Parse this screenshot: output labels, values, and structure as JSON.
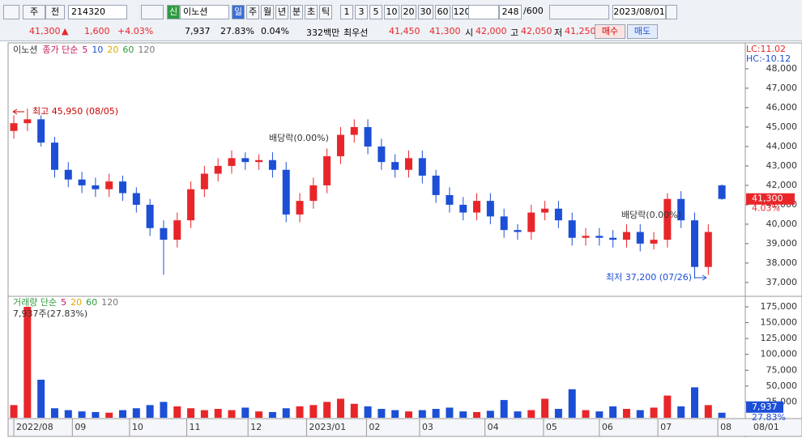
{
  "toolbar": {
    "period": "주",
    "mode": "전",
    "code": "214320",
    "badge": "신",
    "name": "이노션",
    "intervals": [
      "일",
      "주",
      "월",
      "년",
      "분",
      "초",
      "틱"
    ],
    "counts": [
      "1",
      "3",
      "5",
      "10",
      "20",
      "30",
      "60",
      "120"
    ],
    "count": "248",
    "max": "/600",
    "date": "2023/08/01"
  },
  "quote": {
    "price": "41,300",
    "arrow": "▲",
    "change": "1,600",
    "rate": "+4.03%",
    "volume": "7,937",
    "vol_rate": "27.83%",
    "turnover": "0.04%",
    "amount": "332백만",
    "best_label": "최우선",
    "ask": "41,450",
    "bid": "41,300",
    "open_label": "시",
    "open": "42,000",
    "high_label": "고",
    "high": "42,050",
    "low_label": "저",
    "low": "41,250",
    "buy": "매수",
    "sell": "매도"
  },
  "chart_data": {
    "type": "candlestick",
    "name": "이노션",
    "price_legend": "종가 단순",
    "price_periods": [
      "5",
      "10",
      "20",
      "60",
      "120"
    ],
    "lc": "LC:11.02",
    "hc": "HC:-10.12",
    "up_color": "#e8262a",
    "down_color": "#1c4fd6",
    "open": [
      44800,
      45200,
      45400,
      44200,
      42800,
      42300,
      42000,
      41800,
      42200,
      41600,
      41000,
      39800,
      39200,
      40200,
      41800,
      42600,
      43000,
      43400,
      43200,
      43300,
      42800,
      40500,
      41200,
      42000,
      43500,
      44600,
      45000,
      44000,
      43200,
      42800,
      43400,
      42500,
      41500,
      41000,
      40600,
      41200,
      40400,
      39700,
      39600,
      40600,
      40800,
      40200,
      39300,
      39400,
      39300,
      39200,
      39600,
      39000,
      39200,
      41300,
      40200,
      37800,
      42000
    ],
    "high": [
      45600,
      45950,
      45600,
      44500,
      43200,
      42700,
      42400,
      42600,
      42500,
      41900,
      41300,
      40200,
      40600,
      42200,
      43000,
      43400,
      43800,
      43700,
      43600,
      43700,
      43200,
      41600,
      42400,
      43900,
      45000,
      45400,
      45400,
      44400,
      43600,
      43800,
      43800,
      42800,
      41900,
      41400,
      41600,
      41600,
      40800,
      40000,
      41000,
      41200,
      41200,
      40600,
      39800,
      39800,
      39700,
      40000,
      40000,
      39600,
      41600,
      41700,
      40600,
      40000,
      42050
    ],
    "low": [
      44400,
      44800,
      44000,
      42400,
      41900,
      41600,
      41400,
      41400,
      41200,
      40600,
      39400,
      37400,
      38800,
      39800,
      41400,
      42200,
      42600,
      42800,
      42800,
      42400,
      40100,
      40100,
      40800,
      41600,
      43100,
      44200,
      43600,
      42800,
      42400,
      42400,
      42100,
      41100,
      40600,
      40200,
      40200,
      40000,
      39300,
      39200,
      39200,
      40200,
      39800,
      38900,
      38900,
      38900,
      38800,
      38800,
      38600,
      38700,
      38800,
      39800,
      37200,
      37400,
      41250
    ],
    "close": [
      45200,
      45400,
      44200,
      42800,
      42300,
      42000,
      41800,
      42200,
      41600,
      41000,
      39800,
      39200,
      40200,
      41800,
      42600,
      43000,
      43400,
      43200,
      43300,
      42800,
      40500,
      41200,
      42000,
      43500,
      44600,
      45000,
      44000,
      43200,
      42800,
      43400,
      42500,
      41500,
      41000,
      40600,
      41200,
      40400,
      39700,
      39600,
      40600,
      40800,
      40200,
      39300,
      39400,
      39300,
      39200,
      39600,
      39000,
      39200,
      41300,
      40200,
      37800,
      39600,
      41300
    ],
    "volume": [
      20000,
      175000,
      60000,
      15000,
      12000,
      10000,
      9000,
      8000,
      12000,
      15000,
      20000,
      25000,
      18000,
      15000,
      12000,
      14000,
      12000,
      16000,
      10000,
      9000,
      15000,
      18000,
      20000,
      25000,
      30000,
      22000,
      18000,
      14000,
      12000,
      10000,
      12000,
      14000,
      16000,
      10000,
      9000,
      11000,
      28000,
      10000,
      12000,
      30000,
      14000,
      45000,
      12000,
      10000,
      18000,
      14000,
      12000,
      16000,
      35000,
      18000,
      48000,
      20000,
      7937
    ],
    "xlim": [
      -0.3,
      53.6
    ],
    "xticks": [
      {
        "value": 0,
        "label": "2022/08"
      },
      {
        "value": 4.3,
        "label": "09"
      },
      {
        "value": 8.5,
        "label": "10"
      },
      {
        "value": 12.7,
        "label": "11"
      },
      {
        "value": 17.2,
        "label": "12"
      },
      {
        "value": 21.5,
        "label": "2023/01"
      },
      {
        "value": 25.9,
        "label": "02"
      },
      {
        "value": 29.8,
        "label": "03"
      },
      {
        "value": 34.6,
        "label": "04"
      },
      {
        "value": 38.9,
        "label": "05"
      },
      {
        "value": 43.0,
        "label": "06"
      },
      {
        "value": 47.3,
        "label": "07"
      },
      {
        "value": 51.7,
        "label": "08"
      }
    ],
    "last_date": "08/01",
    "ylim": [
      36330,
      49040
    ],
    "yticks": [
      {
        "value": 37000,
        "label": "37,000"
      },
      {
        "value": 38000,
        "label": "38,000"
      },
      {
        "value": 39000,
        "label": "39,000"
      },
      {
        "value": 40000,
        "label": "40,000"
      },
      {
        "value": 41000,
        "label": "41,000"
      },
      {
        "value": 42000,
        "label": "42,000"
      },
      {
        "value": 43000,
        "label": "43,000"
      },
      {
        "value": 44000,
        "label": "44,000"
      },
      {
        "value": 45000,
        "label": "45,000"
      },
      {
        "value": 46000,
        "label": "46,000"
      },
      {
        "value": 47000,
        "label": "47,000"
      },
      {
        "value": 48000,
        "label": "48,000"
      }
    ],
    "last_price": {
      "value": 41300,
      "label": "41,300"
    },
    "last_rate": "4.03%",
    "annotations": [
      "최고 45,950 (08/05)",
      "배당락(0.00%)",
      "배당락(0.00%)",
      "최저 37,200 (07/26)"
    ],
    "volume_legend": "거래량 단순",
    "volume_periods": [
      "5",
      "20",
      "60",
      "120"
    ],
    "volume_info": "7,937주(27.83%)",
    "volume_ylim": [
      0,
      189000
    ],
    "volume_yticks": [
      {
        "value": 25000,
        "label": "25,000"
      },
      {
        "value": 50000,
        "label": "50,000"
      },
      {
        "value": 75000,
        "label": "75,000"
      },
      {
        "value": 100000,
        "label": "100,000"
      },
      {
        "value": 125000,
        "label": "125,000"
      },
      {
        "value": 150000,
        "label": "150,000"
      },
      {
        "value": 175000,
        "label": "175,000"
      }
    ],
    "last_volume": {
      "value": 7937,
      "label": "7,937"
    },
    "last_vol_rate": "27.83%"
  }
}
